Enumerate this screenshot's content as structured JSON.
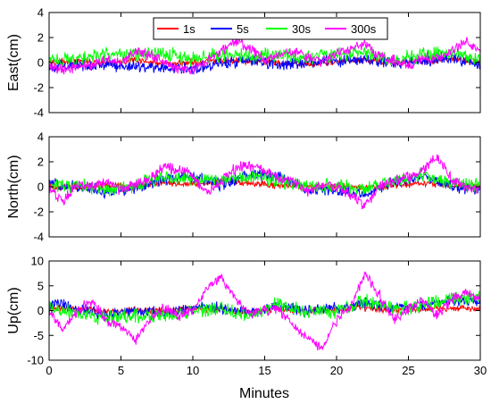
{
  "chart_data": {
    "type": "line",
    "xlabel": "Minutes",
    "xlim": [
      0,
      30
    ],
    "xticks": [
      0,
      5,
      10,
      15,
      20,
      25,
      30
    ],
    "legend": {
      "placement": "top-center",
      "entries": [
        "1s",
        "5s",
        "30s",
        "300s"
      ]
    },
    "series_colors": {
      "1s": "#ff0000",
      "5s": "#0000ff",
      "30s": "#00ff00",
      "300s": "#ff00ff"
    },
    "panels": [
      {
        "ylabel": "East(cm)",
        "ylim": [
          -4,
          4
        ],
        "yticks": [
          -4,
          -2,
          0,
          2,
          4
        ],
        "series": [
          {
            "name": "1s",
            "x": [
              0,
              2,
              4,
              6,
              8,
              10,
              12,
              14,
              16,
              18,
              20,
              22,
              24,
              26,
              28,
              30
            ],
            "values": [
              0.0,
              0.1,
              0.0,
              0.2,
              -0.1,
              0.0,
              0.2,
              0.1,
              0.0,
              -0.1,
              0.1,
              0.2,
              0.0,
              0.1,
              0.3,
              0.0
            ]
          },
          {
            "name": "5s",
            "x": [
              0,
              2,
              4,
              6,
              8,
              10,
              12,
              14,
              16,
              18,
              20,
              22,
              24,
              26,
              28,
              30
            ],
            "values": [
              -0.3,
              -0.2,
              -0.2,
              -0.3,
              -0.4,
              -0.5,
              0.0,
              0.1,
              -0.1,
              0.0,
              0.1,
              0.2,
              0.0,
              0.1,
              0.4,
              -0.2
            ]
          },
          {
            "name": "30s",
            "x": [
              0,
              2,
              4,
              6,
              8,
              10,
              12,
              14,
              16,
              18,
              20,
              22,
              24,
              26,
              28,
              30
            ],
            "values": [
              0.2,
              0.3,
              0.6,
              0.6,
              0.7,
              0.3,
              0.7,
              0.5,
              0.6,
              0.4,
              0.7,
              0.8,
              0.2,
              0.6,
              0.8,
              0.3
            ]
          },
          {
            "name": "300s",
            "x": [
              0,
              1,
              2,
              3,
              4,
              5,
              6,
              7,
              8,
              9,
              10,
              11,
              12,
              13,
              14,
              15,
              16,
              17,
              18,
              19,
              20,
              21,
              22,
              23,
              24,
              25,
              26,
              27,
              28,
              29,
              30
            ],
            "values": [
              -0.3,
              -0.6,
              -0.3,
              -0.2,
              0.3,
              0.0,
              1.0,
              0.6,
              0.0,
              -0.5,
              -0.6,
              0.1,
              1.0,
              1.7,
              1.2,
              0.3,
              0.5,
              0.9,
              0.4,
              0.1,
              0.8,
              1.1,
              1.5,
              0.5,
              0.2,
              -0.2,
              0.4,
              0.3,
              0.8,
              1.8,
              0.7
            ]
          }
        ]
      },
      {
        "ylabel": "North(cm)",
        "ylim": [
          -4,
          4
        ],
        "yticks": [
          -4,
          -2,
          0,
          2,
          4
        ],
        "series": [
          {
            "name": "1s",
            "x": [
              0,
              2,
              4,
              6,
              8,
              10,
              12,
              14,
              16,
              18,
              20,
              22,
              24,
              26,
              28,
              30
            ],
            "values": [
              0.0,
              0.0,
              0.1,
              0.0,
              0.3,
              0.2,
              0.4,
              0.3,
              0.1,
              0.0,
              0.0,
              -0.1,
              0.1,
              0.3,
              0.1,
              0.0
            ]
          },
          {
            "name": "5s",
            "x": [
              0,
              2,
              4,
              6,
              8,
              10,
              12,
              14,
              16,
              18,
              20,
              22,
              24,
              26,
              28,
              30
            ],
            "values": [
              0.3,
              0.0,
              -0.4,
              -0.1,
              0.6,
              0.8,
              0.2,
              1.0,
              0.8,
              -0.2,
              -0.3,
              -0.5,
              0.4,
              0.8,
              0.0,
              -0.3
            ]
          },
          {
            "name": "30s",
            "x": [
              0,
              2,
              4,
              6,
              8,
              10,
              12,
              14,
              16,
              18,
              20,
              22,
              24,
              26,
              28,
              30
            ],
            "values": [
              0.1,
              0.1,
              -0.3,
              0.1,
              0.7,
              0.7,
              0.4,
              0.8,
              0.6,
              0.0,
              0.1,
              -0.2,
              0.5,
              0.9,
              0.3,
              0.0
            ]
          },
          {
            "name": "300s",
            "x": [
              0,
              1,
              2,
              3,
              4,
              5,
              6,
              7,
              8,
              9,
              10,
              11,
              12,
              13,
              14,
              15,
              16,
              17,
              18,
              19,
              20,
              21,
              22,
              23,
              24,
              25,
              26,
              27,
              28,
              29,
              30
            ],
            "values": [
              -0.2,
              -1.1,
              0.3,
              0.0,
              0.4,
              -0.3,
              0.2,
              0.6,
              1.7,
              1.3,
              1.0,
              -0.6,
              0.5,
              1.5,
              1.7,
              1.3,
              0.7,
              0.5,
              -0.4,
              0.1,
              0.0,
              -0.6,
              -1.5,
              0.0,
              0.5,
              0.8,
              1.4,
              2.4,
              0.6,
              0.0,
              -0.3
            ]
          }
        ]
      },
      {
        "ylabel": "Up(cm)",
        "ylim": [
          -10,
          10
        ],
        "yticks": [
          -10,
          -5,
          0,
          5,
          10
        ],
        "series": [
          {
            "name": "1s",
            "x": [
              0,
              2,
              4,
              6,
              8,
              10,
              12,
              14,
              16,
              18,
              20,
              22,
              24,
              26,
              28,
              30
            ],
            "values": [
              0.5,
              0.3,
              -0.2,
              0.1,
              0.0,
              0.4,
              0.2,
              -0.1,
              0.3,
              0.0,
              0.2,
              0.5,
              0.1,
              0.3,
              0.6,
              0.4
            ]
          },
          {
            "name": "5s",
            "x": [
              0,
              2,
              4,
              6,
              8,
              10,
              12,
              14,
              16,
              18,
              20,
              22,
              24,
              26,
              28,
              30
            ],
            "values": [
              1.5,
              0.5,
              -1.0,
              0.0,
              -0.5,
              0.5,
              0.5,
              -0.5,
              1.0,
              0.0,
              0.5,
              1.5,
              0.5,
              1.0,
              2.0,
              2.0
            ]
          },
          {
            "name": "30s",
            "x": [
              0,
              2,
              4,
              6,
              8,
              10,
              12,
              14,
              16,
              18,
              20,
              22,
              24,
              26,
              28,
              30
            ],
            "values": [
              0.5,
              -0.5,
              -1.5,
              -1.0,
              -1.0,
              0.0,
              0.5,
              -1.0,
              1.5,
              -0.5,
              0.0,
              2.0,
              0.5,
              1.0,
              2.5,
              2.5
            ]
          },
          {
            "name": "300s",
            "x": [
              0,
              1,
              2,
              3,
              4,
              5,
              6,
              7,
              8,
              9,
              10,
              11,
              12,
              13,
              14,
              15,
              16,
              17,
              18,
              19,
              20,
              21,
              22,
              23,
              24,
              25,
              26,
              27,
              28,
              29,
              30
            ],
            "values": [
              0.0,
              -4.0,
              0.0,
              2.0,
              -2.0,
              -3.0,
              -6.0,
              -2.0,
              0.5,
              -1.0,
              0.0,
              5.0,
              6.5,
              2.0,
              -1.0,
              0.5,
              0.0,
              -3.0,
              -5.5,
              -8.0,
              -2.0,
              1.0,
              7.5,
              3.0,
              -2.0,
              0.5,
              2.0,
              -1.0,
              2.5,
              3.5,
              2.5
            ]
          }
        ]
      }
    ]
  }
}
